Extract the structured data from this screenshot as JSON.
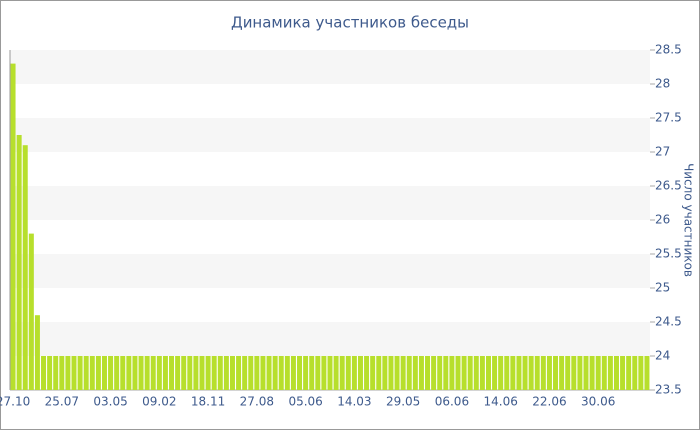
{
  "chart_data": {
    "type": "bar",
    "title": "Динамика участников беседы",
    "y_label": "Число участников",
    "categories": [
      "27.10",
      null,
      null,
      null,
      null,
      null,
      null,
      null,
      "25.07",
      null,
      null,
      null,
      null,
      null,
      null,
      null,
      "03.05",
      null,
      null,
      null,
      null,
      null,
      null,
      null,
      "09.02",
      null,
      null,
      null,
      null,
      null,
      null,
      null,
      "18.11",
      null,
      null,
      null,
      null,
      null,
      null,
      null,
      "27.08",
      null,
      null,
      null,
      null,
      null,
      null,
      null,
      "05.06",
      null,
      null,
      null,
      null,
      null,
      null,
      null,
      "14.03",
      null,
      null,
      null,
      null,
      null,
      null,
      null,
      "29.05",
      null,
      null,
      null,
      null,
      null,
      null,
      null,
      "06.06",
      null,
      null,
      null,
      null,
      null,
      null,
      null,
      "14.06",
      null,
      null,
      null,
      null,
      null,
      null,
      null,
      "22.06",
      null,
      null,
      null,
      null,
      null,
      null,
      null,
      "30.06",
      null,
      null,
      null,
      null,
      null,
      null,
      null,
      null
    ],
    "values": [
      28.3,
      27.25,
      27.1,
      25.8,
      24.6,
      24,
      24,
      24,
      24,
      24,
      24,
      24,
      24,
      24,
      24,
      24,
      24,
      24,
      24,
      24,
      24,
      24,
      24,
      24,
      24,
      24,
      24,
      24,
      24,
      24,
      24,
      24,
      24,
      24,
      24,
      24,
      24,
      24,
      24,
      24,
      24,
      24,
      24,
      24,
      24,
      24,
      24,
      24,
      24,
      24,
      24,
      24,
      24,
      24,
      24,
      24,
      24,
      24,
      24,
      24,
      24,
      24,
      24,
      24,
      24,
      24,
      24,
      24,
      24,
      24,
      24,
      24,
      24,
      24,
      24,
      24,
      24,
      24,
      24,
      24,
      24,
      24,
      24,
      24,
      24,
      24,
      24,
      24,
      24,
      24,
      24,
      24,
      24,
      24,
      24,
      24,
      24,
      24,
      24,
      24,
      24,
      24,
      24,
      24,
      24
    ],
    "color": "#b7df2c",
    "ylim": [
      23.5,
      28.5
    ],
    "yticks": [
      23.5,
      24,
      24.5,
      25,
      25.5,
      26,
      26.5,
      27,
      27.5,
      28,
      28.5
    ],
    "grid": true
  }
}
